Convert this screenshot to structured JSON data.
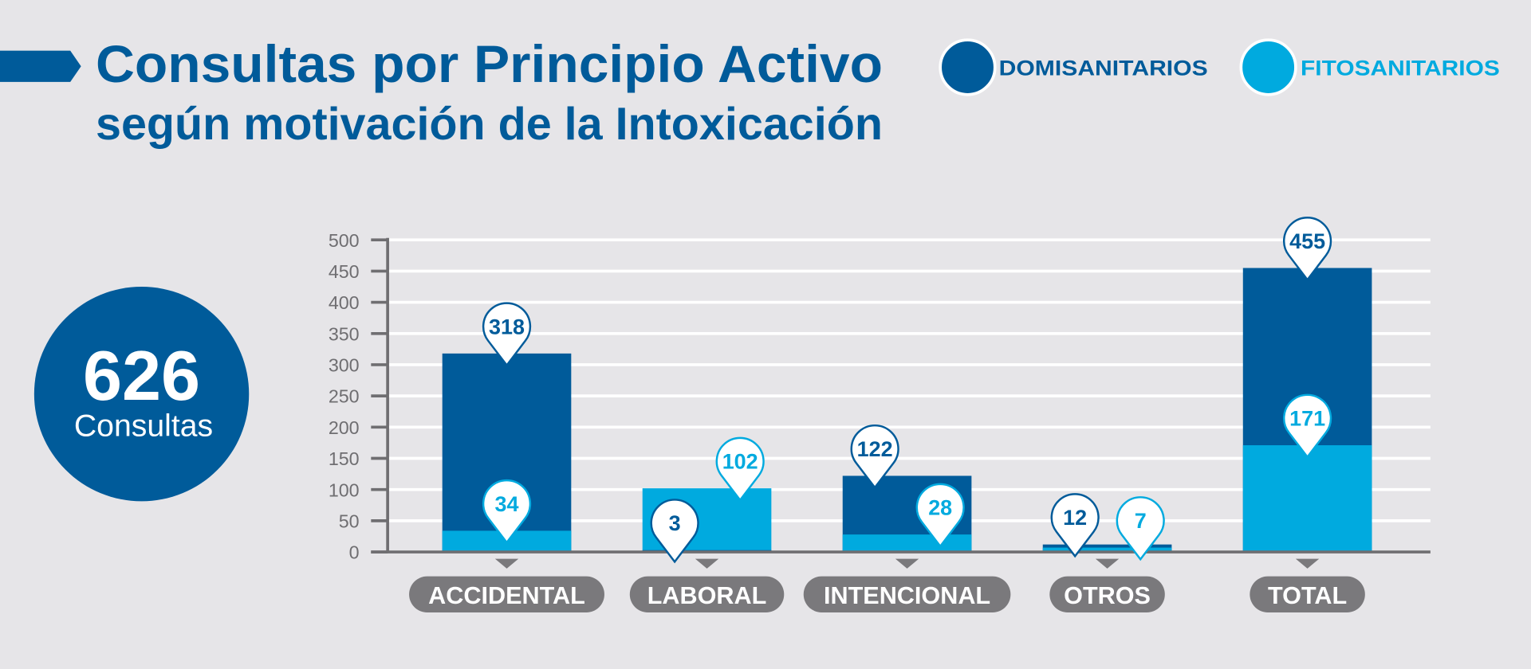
{
  "title": {
    "line1": "Consultas por Principio Activo",
    "line2": "según motivación de la Intoxicación"
  },
  "summary": {
    "total": "626",
    "label": "Consultas"
  },
  "colors": {
    "domisanitarios": "#005b9a",
    "fitosanitarios": "#00aadf",
    "background": "#e6e5e8",
    "axis": "#6f6e71",
    "category_pill": "#7a797c"
  },
  "chart_data": {
    "type": "bar",
    "categories": [
      "ACCIDENTAL",
      "LABORAL",
      "INTENCIONAL",
      "OTROS",
      "TOTAL"
    ],
    "series": [
      {
        "name": "DOMISANITARIOS",
        "values": [
          318,
          3,
          122,
          12,
          455
        ]
      },
      {
        "name": "FITOSANITARIOS",
        "values": [
          34,
          102,
          28,
          7,
          171
        ]
      }
    ],
    "ylim": [
      0,
      500
    ],
    "yticks": [
      0,
      50,
      100,
      150,
      200,
      250,
      300,
      350,
      400,
      450,
      500
    ],
    "grid": true,
    "legend": "top-right",
    "bars_overlapped": true
  }
}
